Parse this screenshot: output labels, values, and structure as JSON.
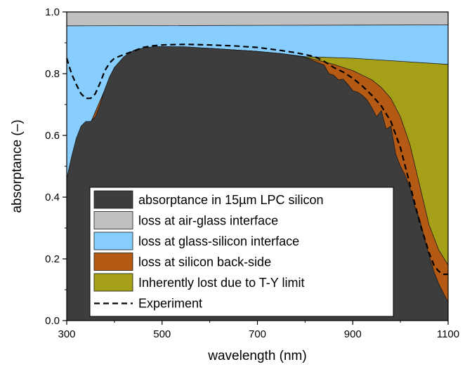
{
  "chart_data": {
    "type": "area",
    "xlabel": "wavelength (nm)",
    "ylabel": "absorptance (–)",
    "xlim": [
      300,
      1100
    ],
    "ylim": [
      0.0,
      1.0
    ],
    "x_ticks": [
      "300",
      "500",
      "700",
      "900",
      "1100"
    ],
    "y_ticks": [
      "0.0",
      "0.2",
      "0.4",
      "0.6",
      "0.8",
      "1.0"
    ],
    "grid": false,
    "legend_position": "bottom-left",
    "series": [
      {
        "name": "absorptance in 15µm LPC silicon",
        "kind": "area",
        "color": "#3d3d3d",
        "x": [
          300,
          310,
          320,
          330,
          340,
          350,
          360,
          370,
          380,
          390,
          400,
          420,
          440,
          460,
          480,
          500,
          550,
          600,
          650,
          700,
          750,
          800,
          820,
          840,
          850,
          860,
          870,
          880,
          890,
          900,
          910,
          920,
          930,
          940,
          950,
          960,
          970,
          980,
          990,
          1000,
          1010,
          1020,
          1030,
          1040,
          1050,
          1060,
          1070,
          1080,
          1090,
          1100
        ],
        "values": [
          0.46,
          0.53,
          0.59,
          0.63,
          0.645,
          0.645,
          0.66,
          0.7,
          0.75,
          0.79,
          0.82,
          0.855,
          0.875,
          0.883,
          0.887,
          0.888,
          0.887,
          0.882,
          0.877,
          0.872,
          0.865,
          0.853,
          0.84,
          0.828,
          0.8,
          0.795,
          0.78,
          0.782,
          0.765,
          0.745,
          0.74,
          0.73,
          0.715,
          0.69,
          0.66,
          0.68,
          0.62,
          0.63,
          0.54,
          0.5,
          0.47,
          0.43,
          0.37,
          0.33,
          0.27,
          0.21,
          0.16,
          0.12,
          0.09,
          0.06
        ]
      },
      {
        "name": "loss at silicon back-side",
        "kind": "area",
        "color": "#b55a14",
        "x": [
          300,
          400,
          500,
          600,
          700,
          750,
          800,
          820,
          840,
          860,
          880,
          900,
          920,
          940,
          960,
          980,
          1000,
          1020,
          1040,
          1060,
          1080,
          1100
        ],
        "values": [
          0.46,
          0.82,
          0.888,
          0.882,
          0.872,
          0.865,
          0.853,
          0.846,
          0.838,
          0.83,
          0.82,
          0.81,
          0.795,
          0.78,
          0.755,
          0.72,
          0.66,
          0.57,
          0.44,
          0.31,
          0.23,
          0.18
        ]
      },
      {
        "name": "Inherently lost due to T-Y limit",
        "kind": "area",
        "color": "#a5a018",
        "x": [
          300,
          400,
          500,
          600,
          700,
          750,
          800,
          900,
          1000,
          1100
        ],
        "values": [
          0.46,
          0.82,
          0.888,
          0.882,
          0.872,
          0.865,
          0.855,
          0.85,
          0.84,
          0.83
        ]
      },
      {
        "name": "loss at glass-silicon interface",
        "kind": "area",
        "color": "#87ceff",
        "x": [
          300,
          1100
        ],
        "values": [
          0.955,
          0.958
        ]
      },
      {
        "name": "loss at air-glass interface",
        "kind": "area",
        "color": "#c0c0c0",
        "x": [
          300,
          1100
        ],
        "values": [
          1.0,
          1.0
        ]
      },
      {
        "name": "Experiment",
        "kind": "dashed-line",
        "color": "#000000",
        "x": [
          300,
          310,
          320,
          330,
          340,
          350,
          360,
          370,
          380,
          390,
          400,
          420,
          440,
          460,
          480,
          500,
          550,
          600,
          650,
          700,
          750,
          780,
          800,
          820,
          840,
          860,
          880,
          900,
          920,
          940,
          960,
          980,
          1000,
          1010,
          1020,
          1030,
          1040,
          1050,
          1060,
          1070,
          1080,
          1090,
          1100
        ],
        "values": [
          0.85,
          0.8,
          0.765,
          0.735,
          0.72,
          0.72,
          0.735,
          0.77,
          0.81,
          0.835,
          0.85,
          0.862,
          0.873,
          0.885,
          0.89,
          0.893,
          0.895,
          0.893,
          0.89,
          0.885,
          0.875,
          0.868,
          0.862,
          0.855,
          0.84,
          0.82,
          0.805,
          0.785,
          0.76,
          0.73,
          0.695,
          0.645,
          0.56,
          0.5,
          0.44,
          0.38,
          0.32,
          0.27,
          0.22,
          0.18,
          0.16,
          0.15,
          0.15
        ]
      }
    ]
  }
}
